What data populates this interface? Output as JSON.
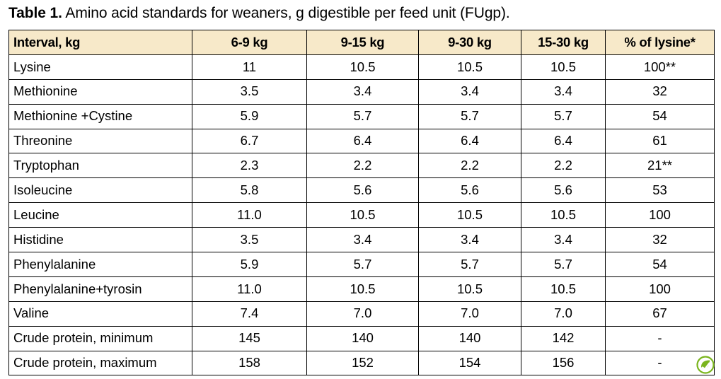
{
  "caption": {
    "label": "Table 1.",
    "text": " Amino acid standards for weaners, g digestible per feed unit (FUgp)."
  },
  "table": {
    "headers": [
      "Interval, kg",
      "6-9 kg",
      "9-15 kg",
      "9-30 kg",
      "15-30 kg",
      "% of lysine*"
    ],
    "rows": [
      [
        "Lysine",
        "11",
        "10.5",
        "10.5",
        "10.5",
        "100**"
      ],
      [
        "Methionine",
        "3.5",
        "3.4",
        "3.4",
        "3.4",
        "32"
      ],
      [
        "Methionine +Cystine",
        "5.9",
        "5.7",
        "5.7",
        "5.7",
        "54"
      ],
      [
        "Threonine",
        "6.7",
        "6.4",
        "6.4",
        "6.4",
        "61"
      ],
      [
        "Tryptophan",
        "2.3",
        "2.2",
        "2.2",
        "2.2",
        "21**"
      ],
      [
        "Isoleucine",
        "5.8",
        "5.6",
        "5.6",
        "5.6",
        "53"
      ],
      [
        "Leucine",
        "11.0",
        "10.5",
        "10.5",
        "10.5",
        "100"
      ],
      [
        "Histidine",
        "3.5",
        "3.4",
        "3.4",
        "3.4",
        "32"
      ],
      [
        "Phenylalanine",
        "5.9",
        "5.7",
        "5.7",
        "5.7",
        "54"
      ],
      [
        "Phenylalanine+tyrosin",
        "11.0",
        "10.5",
        "10.5",
        "10.5",
        "100"
      ],
      [
        "Valine",
        "7.4",
        "7.0",
        "7.0",
        "7.0",
        "67"
      ],
      [
        "Crude protein, minimum",
        "145",
        "140",
        "140",
        "142",
        "-"
      ],
      [
        "Crude protein, maximum",
        "158",
        "152",
        "154",
        "156",
        "-"
      ]
    ]
  },
  "colors": {
    "header_background": "#f7e9c9",
    "logo_green": "#7ab51d"
  },
  "icons": {
    "corner_logo": "leaf-check-logo-icon"
  }
}
